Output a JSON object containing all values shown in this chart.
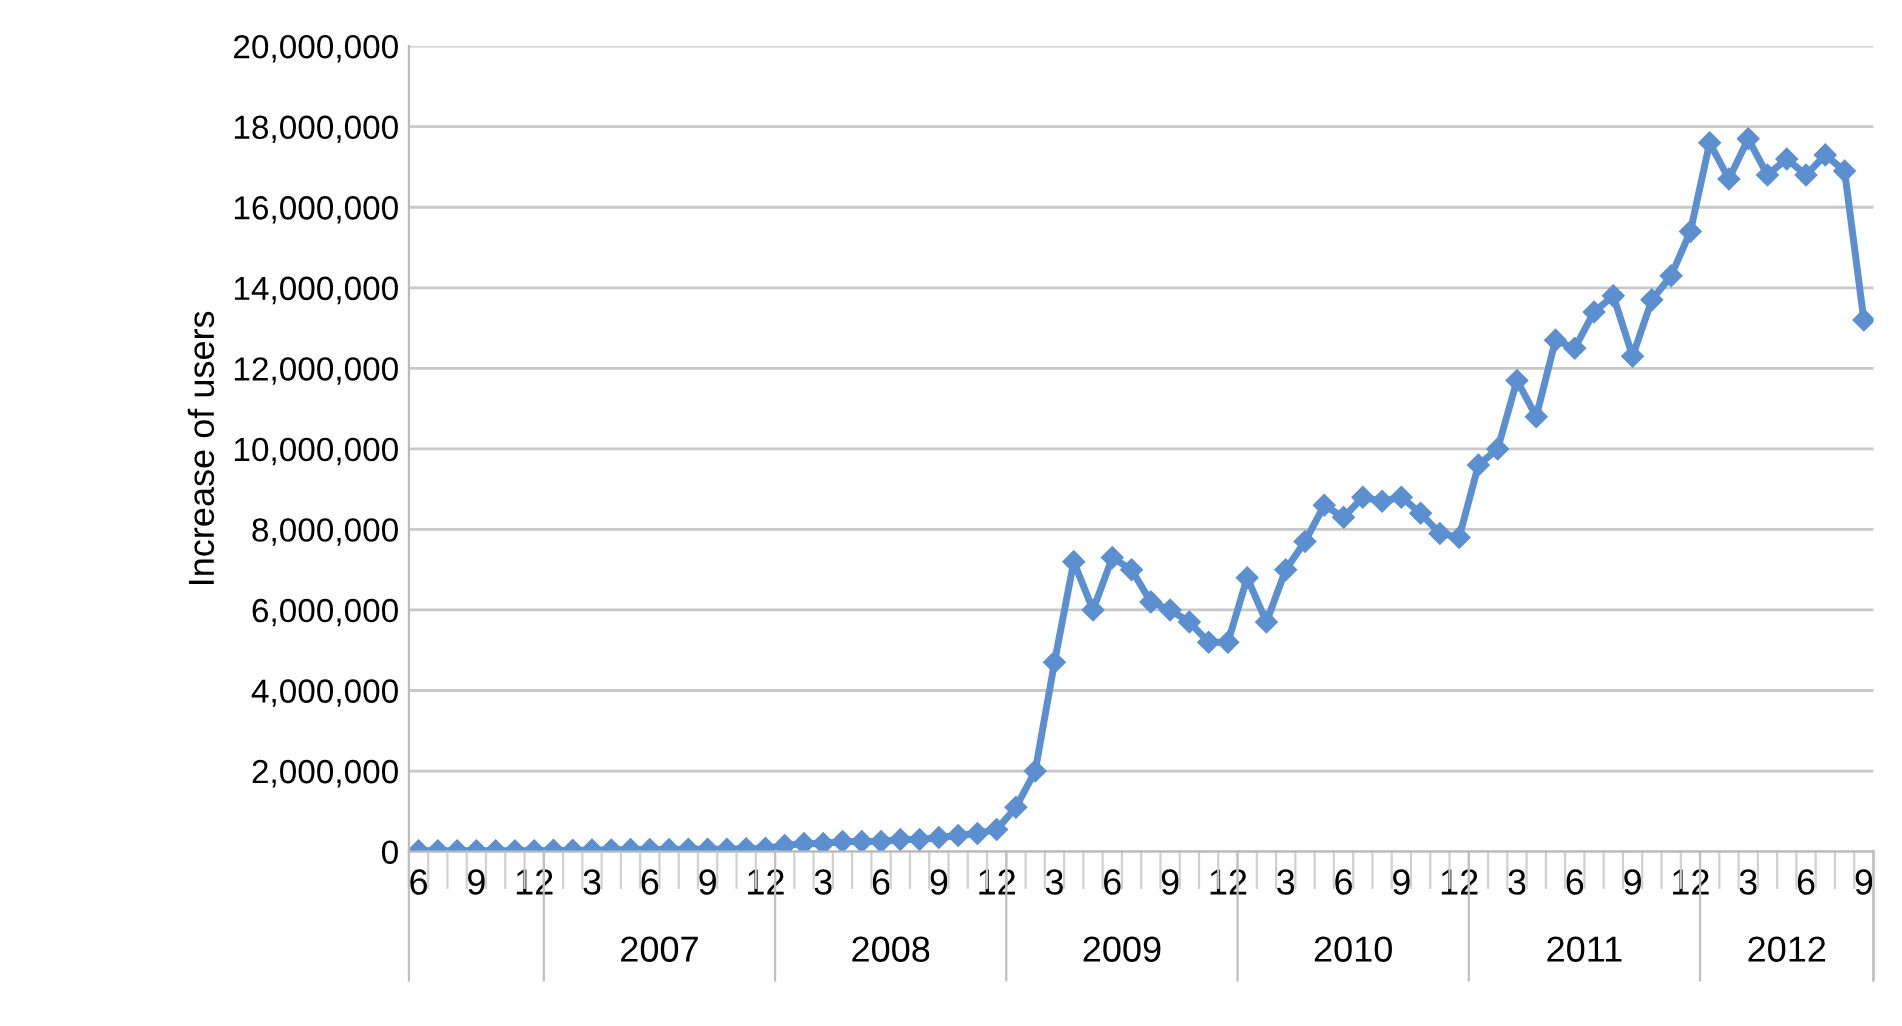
{
  "chart_data": {
    "type": "line",
    "ylabel": "Increase of users",
    "categories": [
      "6",
      null,
      null,
      "9",
      null,
      null,
      "12",
      null,
      null,
      "3",
      null,
      null,
      "6",
      null,
      null,
      "9",
      null,
      null,
      "12",
      null,
      null,
      "3",
      null,
      null,
      "6",
      null,
      null,
      "9",
      null,
      null,
      "12",
      null,
      null,
      "3",
      null,
      null,
      "6",
      null,
      null,
      "9",
      null,
      null,
      "12",
      null,
      null,
      "3",
      null,
      null,
      "6",
      null,
      null,
      "9",
      null,
      null,
      "12",
      null,
      null,
      "3",
      null,
      null,
      "6",
      null,
      null,
      "9",
      null,
      null,
      "12",
      null,
      null,
      "3",
      null,
      null,
      "6",
      null,
      null,
      "9"
    ],
    "series": [
      {
        "color": "#5b8fd0",
        "values": [
          20000,
          20000,
          20000,
          20000,
          20000,
          20000,
          20000,
          30000,
          30000,
          40000,
          40000,
          50000,
          50000,
          50000,
          60000,
          60000,
          60000,
          70000,
          80000,
          150000,
          200000,
          200000,
          250000,
          250000,
          250000,
          300000,
          300000,
          350000,
          400000,
          450000,
          550000,
          1100000,
          2000000,
          4700000,
          7200000,
          6000000,
          7300000,
          7000000,
          6200000,
          6000000,
          5700000,
          5200000,
          5200000,
          6800000,
          5700000,
          7000000,
          7700000,
          8600000,
          8300000,
          8800000,
          8700000,
          8800000,
          8400000,
          7900000,
          7800000,
          9600000,
          10000000,
          11700000,
          10800000,
          12700000,
          12500000,
          13400000,
          13800000,
          12300000,
          13700000,
          14300000,
          15400000,
          17600000,
          16700000,
          17700000,
          16800000,
          17200000,
          16800000,
          17300000,
          16900000,
          13200000
        ]
      }
    ],
    "annotations": [
      "2007",
      "2008",
      "2009",
      "2010",
      "2011",
      "2012"
    ],
    "ylim": [
      0,
      20000000
    ],
    "yticks": [
      {
        "value": 0,
        "label": "0"
      },
      {
        "value": 2000000,
        "label": "2,000,000"
      },
      {
        "value": 4000000,
        "label": "4,000,000"
      },
      {
        "value": 6000000,
        "label": "6,000,000"
      },
      {
        "value": 8000000,
        "label": "8,000,000"
      },
      {
        "value": 10000000,
        "label": "10,000,000"
      },
      {
        "value": 12000000,
        "label": "12,000,000"
      },
      {
        "value": 14000000,
        "label": "14,000,000"
      },
      {
        "value": 16000000,
        "label": "16,000,000"
      },
      {
        "value": 18000000,
        "label": "18,000,000"
      },
      {
        "value": 20000000,
        "label": "20,000,000"
      }
    ],
    "grid": "y",
    "marker": "diamond",
    "line_style": "solid"
  }
}
